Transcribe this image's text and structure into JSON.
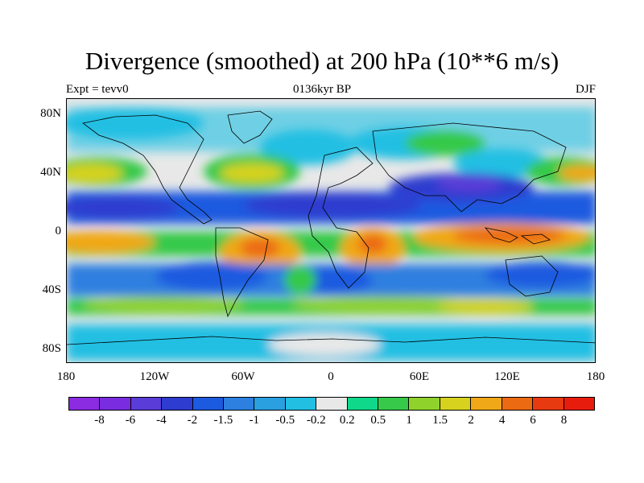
{
  "title": "Divergence (smoothed) at 200 hPa (10**6 m/s)",
  "subtitle_left": "Expt = tevv0",
  "subtitle_center": "0136kyr BP",
  "subtitle_right": "DJF",
  "map": {
    "projection": "cylindrical-equidistant",
    "lat_labels": [
      "80N",
      "40N",
      "0",
      "40S",
      "80S"
    ],
    "lon_labels": [
      "180",
      "120W",
      "60W",
      "0",
      "60E",
      "120E",
      "180"
    ],
    "background_color": "#e8e8e8",
    "coastline_color": "#000000"
  },
  "colorbar": {
    "colors": [
      "#8b2be2",
      "#7a2ce0",
      "#5a3cd8",
      "#2e3ccf",
      "#1c5ae0",
      "#2d7fe0",
      "#2aa0e0",
      "#22bfe3",
      "#e8e8e8",
      "#0fd88a",
      "#36c94a",
      "#8fd22c",
      "#d6d21e",
      "#f0a818",
      "#ec6a12",
      "#e83a10",
      "#e81c0c"
    ],
    "labels": [
      "-8",
      "-6",
      "-4",
      "-2",
      "-1.5",
      "-1",
      "-0.5",
      "-0.2",
      "0.2",
      "0.5",
      "1",
      "1.5",
      "2",
      "4",
      "6",
      "8"
    ]
  }
}
